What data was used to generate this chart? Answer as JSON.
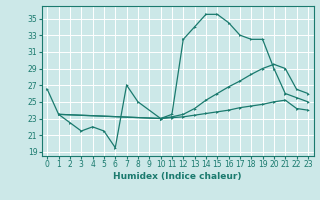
{
  "title": "",
  "xlabel": "Humidex (Indice chaleur)",
  "xlim": [
    -0.5,
    23.5
  ],
  "ylim": [
    18.5,
    36.5
  ],
  "yticks": [
    19,
    21,
    23,
    25,
    27,
    29,
    31,
    33,
    35
  ],
  "xticks": [
    0,
    1,
    2,
    3,
    4,
    5,
    6,
    7,
    8,
    9,
    10,
    11,
    12,
    13,
    14,
    15,
    16,
    17,
    18,
    19,
    20,
    21,
    22,
    23
  ],
  "background_color": "#cce8e8",
  "grid_color": "#ffffff",
  "line_color": "#1a7a6e",
  "tick_fontsize": 5.5,
  "xlabel_fontsize": 6.5,
  "lines": [
    {
      "x": [
        0,
        1,
        2,
        3,
        4,
        5,
        6,
        7,
        8,
        10,
        11,
        12,
        13,
        14,
        15,
        16,
        17,
        18,
        19,
        20,
        21,
        22,
        23
      ],
      "y": [
        26.5,
        23.5,
        22.5,
        21.5,
        22.0,
        21.5,
        19.5,
        27.0,
        25.0,
        23.0,
        23.5,
        32.5,
        34.0,
        35.5,
        35.5,
        34.5,
        33.0,
        32.5,
        32.5,
        29.0,
        26.0,
        25.5,
        25.0
      ]
    },
    {
      "x": [
        1,
        10,
        11,
        12,
        13,
        14,
        15,
        16,
        17,
        18,
        19,
        20,
        21,
        22,
        23
      ],
      "y": [
        23.5,
        23.0,
        23.2,
        23.5,
        24.2,
        25.2,
        26.0,
        26.8,
        27.5,
        28.3,
        29.0,
        29.5,
        29.0,
        26.5,
        26.0
      ]
    },
    {
      "x": [
        1,
        10,
        11,
        12,
        13,
        14,
        15,
        16,
        17,
        18,
        19,
        20,
        21,
        22,
        23
      ],
      "y": [
        23.5,
        23.0,
        23.1,
        23.2,
        23.4,
        23.6,
        23.8,
        24.0,
        24.3,
        24.5,
        24.7,
        25.0,
        25.2,
        24.2,
        24.0
      ]
    }
  ]
}
